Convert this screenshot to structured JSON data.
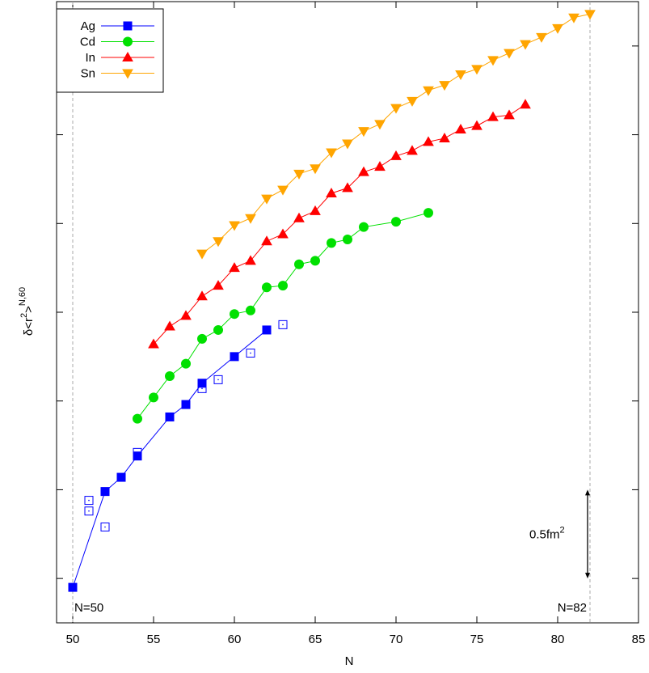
{
  "chart_data": {
    "type": "line",
    "xlabel": "N",
    "ylabel": [
      "δ<r",
      "2",
      ">",
      "N,60"
    ],
    "xlim": [
      49,
      85
    ],
    "ylim": [
      -0.25,
      3.25
    ],
    "xticks": [
      50,
      55,
      60,
      65,
      70,
      75,
      80,
      85
    ],
    "yticks": [
      0,
      0.5,
      1,
      1.5,
      2,
      2.5,
      3
    ],
    "legend": "top-left",
    "vlines": [
      50,
      82
    ],
    "annotations": [
      {
        "text": "N=50",
        "x": 50
      },
      {
        "text": "N=82",
        "x": 82
      }
    ],
    "scale_bar": {
      "label": "0.5fm",
      "label_sup": "2",
      "from": 0,
      "to": 0.5
    },
    "series": [
      {
        "name": "Ag",
        "color": "#0000ff",
        "marker": "square",
        "x": [
          50,
          52,
          53,
          54,
          56,
          57,
          58,
          60,
          62
        ],
        "values": [
          -0.05,
          0.49,
          0.57,
          0.69,
          0.91,
          0.98,
          1.1,
          1.25,
          1.4
        ],
        "open_x": [
          51,
          51,
          52,
          54,
          58,
          59,
          61,
          63
        ],
        "open_values": [
          0.44,
          0.38,
          0.29,
          0.71,
          1.07,
          1.12,
          1.27,
          1.43
        ]
      },
      {
        "name": "Cd",
        "color": "#00e000",
        "marker": "circle",
        "x": [
          54,
          55,
          56,
          57,
          58,
          59,
          60,
          61,
          62,
          63,
          64,
          65,
          66,
          67,
          68,
          70,
          72
        ],
        "values": [
          0.9,
          1.02,
          1.14,
          1.21,
          1.35,
          1.4,
          1.49,
          1.51,
          1.64,
          1.65,
          1.77,
          1.79,
          1.89,
          1.91,
          1.98,
          2.01,
          2.06
        ]
      },
      {
        "name": "In",
        "color": "#ff0000",
        "marker": "triangle-up",
        "x": [
          55,
          56,
          57,
          58,
          59,
          60,
          61,
          62,
          63,
          64,
          65,
          66,
          67,
          68,
          69,
          70,
          71,
          72,
          73,
          74,
          75,
          76,
          77,
          78
        ],
        "values": [
          1.32,
          1.42,
          1.48,
          1.59,
          1.65,
          1.75,
          1.79,
          1.9,
          1.94,
          2.03,
          2.07,
          2.17,
          2.2,
          2.29,
          2.32,
          2.38,
          2.41,
          2.46,
          2.48,
          2.53,
          2.55,
          2.6,
          2.61,
          2.67
        ]
      },
      {
        "name": "Sn",
        "color": "#ffa500",
        "marker": "triangle-down",
        "x": [
          58,
          59,
          60,
          61,
          62,
          63,
          64,
          65,
          66,
          67,
          68,
          69,
          70,
          71,
          72,
          73,
          74,
          75,
          76,
          77,
          78,
          79,
          80,
          81,
          82
        ],
        "values": [
          1.83,
          1.9,
          1.99,
          2.03,
          2.14,
          2.19,
          2.28,
          2.31,
          2.4,
          2.45,
          2.52,
          2.56,
          2.65,
          2.69,
          2.75,
          2.78,
          2.84,
          2.87,
          2.92,
          2.96,
          3.01,
          3.05,
          3.1,
          3.16,
          3.18
        ]
      }
    ]
  }
}
